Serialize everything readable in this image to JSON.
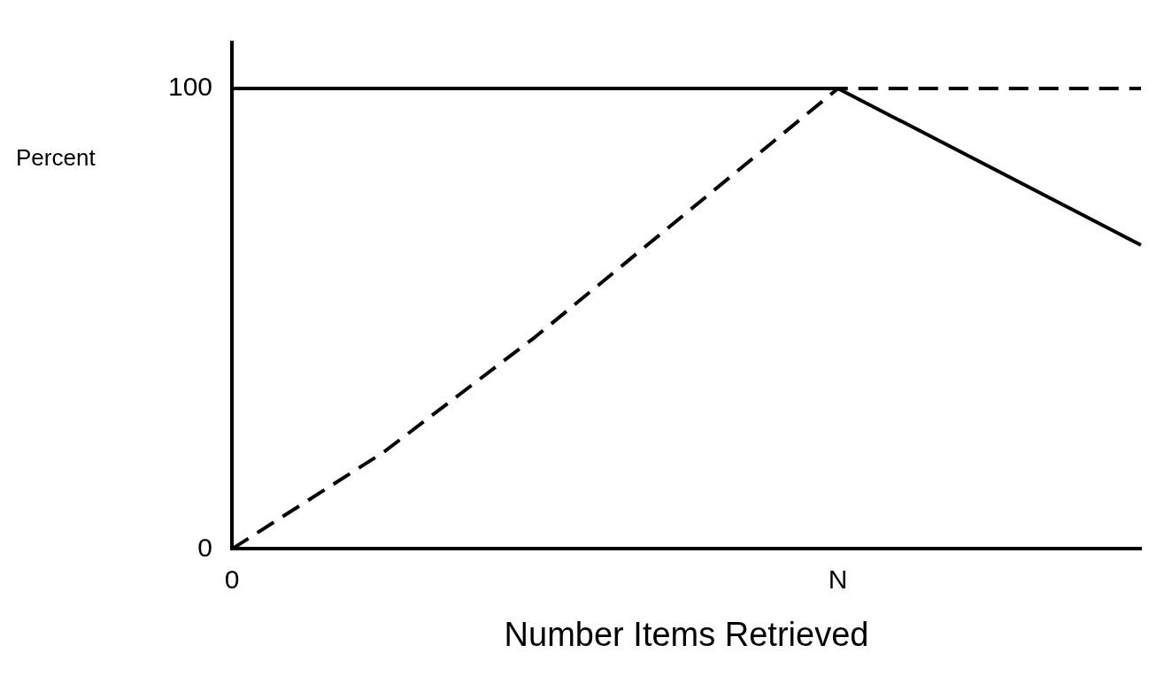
{
  "chart_data": {
    "type": "line",
    "xlabel": "Number Items Retrieved",
    "ylabel": "Percent",
    "categories": [
      "0",
      null,
      null,
      null,
      "N",
      null,
      null
    ],
    "ylim": [
      0,
      110
    ],
    "yticks": [
      0,
      100
    ],
    "grid": false,
    "legend": false,
    "marker": "none",
    "series": [
      {
        "color": "#000000",
        "line_style": "solid",
        "values": [
          100,
          null,
          null,
          null,
          100,
          null,
          66
        ]
      },
      {
        "color": "#000000",
        "line_style": "dashed",
        "values": [
          0,
          21,
          46,
          73,
          100,
          100,
          100
        ]
      }
    ]
  }
}
